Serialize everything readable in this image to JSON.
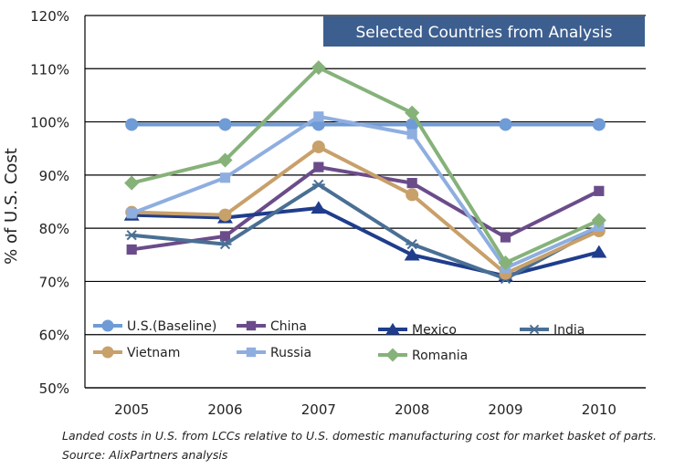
{
  "chart_data": {
    "type": "line",
    "title": "Selected Countries from Analysis",
    "ylabel": "% of U.S. Cost",
    "xlabel": "",
    "x": [
      "2005",
      "2006",
      "2007",
      "2008",
      "2009",
      "2010"
    ],
    "ylim": [
      50,
      120
    ],
    "yticks": [
      50,
      60,
      70,
      80,
      90,
      100,
      110,
      120
    ],
    "ytick_labels": [
      "50%",
      "60%",
      "70%",
      "80%",
      "90%",
      "100%",
      "110%",
      "120%"
    ],
    "grid": "horizontal",
    "legend": "bottom-inside",
    "series": [
      {
        "name": "U.S.(Baseline)",
        "color": "#6f9bd6",
        "marker": "circle",
        "values": [
          99.5,
          99.5,
          99.5,
          99.5,
          99.5,
          99.5
        ]
      },
      {
        "name": "China",
        "color": "#6b4c8a",
        "marker": "square",
        "values": [
          76,
          78.5,
          91.5,
          88.5,
          78.3,
          87
        ]
      },
      {
        "name": "Mexico",
        "color": "#1f3d8c",
        "marker": "triangle",
        "values": [
          82.5,
          82,
          83.8,
          75,
          71,
          75.5
        ]
      },
      {
        "name": "India",
        "color": "#4a6f94",
        "marker": "asterisk",
        "values": [
          78.7,
          77,
          88.2,
          77,
          70.5,
          80
        ]
      },
      {
        "name": "Vietnam",
        "color": "#c8a06a",
        "marker": "circle",
        "values": [
          83,
          82.5,
          95.3,
          86.3,
          71.5,
          79.5
        ]
      },
      {
        "name": "Russia",
        "color": "#8eaee0",
        "marker": "square",
        "values": [
          82.8,
          89.5,
          101,
          97.7,
          72.5,
          80.3
        ]
      },
      {
        "name": "Romania",
        "color": "#86b27a",
        "marker": "diamond",
        "values": [
          88.5,
          92.8,
          110.2,
          101.7,
          73.5,
          81.5
        ]
      }
    ]
  },
  "footnote": {
    "line1": "Landed costs in U.S. from LCCs relative to U.S. domestic manufacturing cost for market basket of parts.",
    "line2": "Source: AlixPartners analysis"
  }
}
